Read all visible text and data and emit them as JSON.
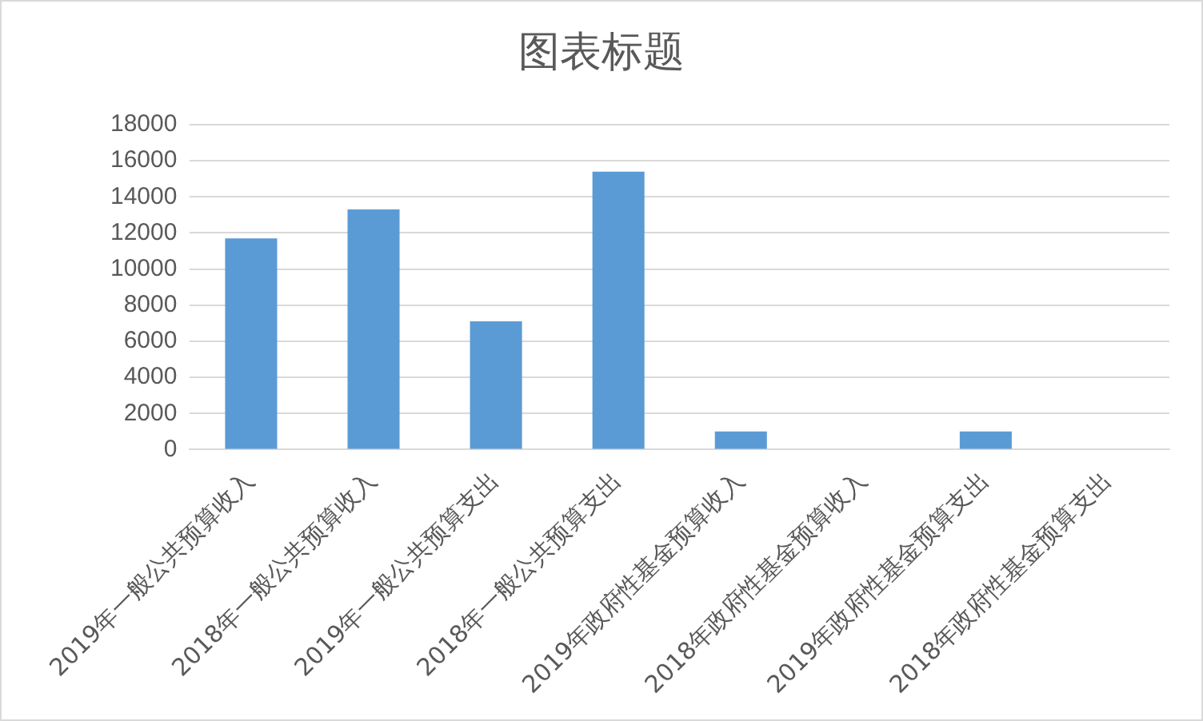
{
  "chart_data": {
    "type": "bar",
    "title": "图表标题",
    "categories": [
      "2019年一般公共预算收入",
      "2018年一般公共预算收入",
      "2019年一般公共预算支出",
      "2018年一般公共预算支出",
      "2019年政府性基金预算收入",
      "2018年政府性基金预算收入",
      "2019年政府性基金预算支出",
      "2018年政府性基金预算支出"
    ],
    "values": [
      11700,
      13300,
      7100,
      15400,
      1000,
      0,
      1000,
      0
    ],
    "color": "#5b9bd5",
    "ylim": [
      0,
      18000
    ],
    "yticks": [
      0,
      2000,
      4000,
      6000,
      8000,
      10000,
      12000,
      14000,
      16000,
      18000
    ],
    "grid": "y",
    "legend": false
  }
}
